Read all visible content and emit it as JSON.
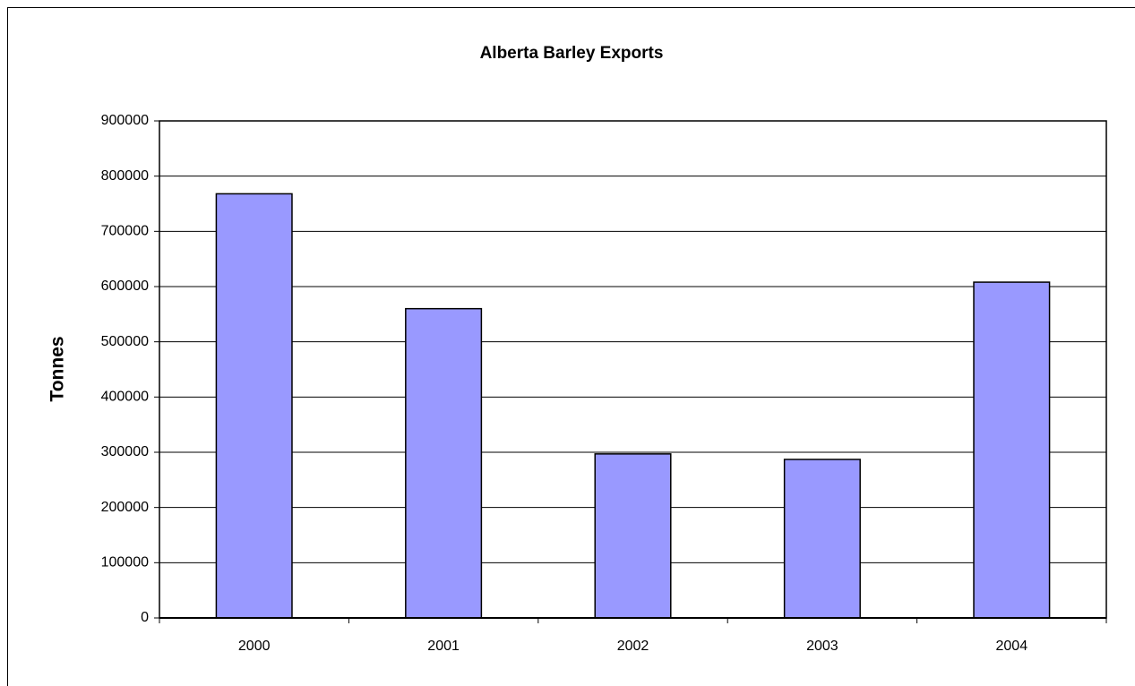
{
  "chart_data": {
    "type": "bar",
    "title": "Alberta Barley Exports",
    "y_label": "Tonnes",
    "categories": [
      "2000",
      "2001",
      "2002",
      "2003",
      "2004"
    ],
    "values": [
      768000,
      560000,
      297000,
      287000,
      608000
    ],
    "color": "#9999ff",
    "ylim": [
      0,
      900000
    ],
    "yticks": [
      0,
      100000,
      200000,
      300000,
      400000,
      500000,
      600000,
      700000,
      800000,
      900000
    ],
    "grid": true
  }
}
